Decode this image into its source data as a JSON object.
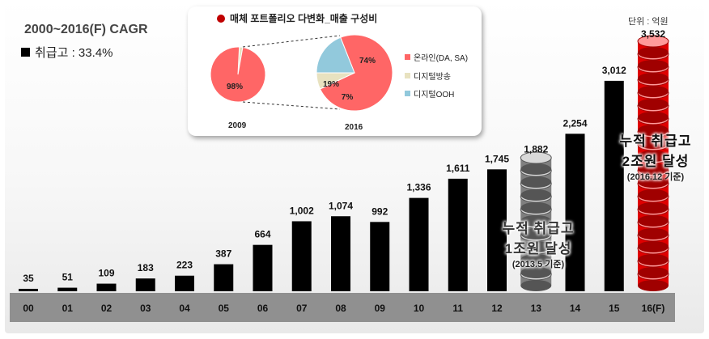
{
  "header": {
    "cagr_title": "2000~2016(F) CAGR",
    "legend_label": "취급고 : 33.4%",
    "unit": "단위 : 억원"
  },
  "inset": {
    "title": "매체 포트폴리오 다변화_매출 구성비",
    "pies": [
      {
        "year": "2009",
        "slices": [
          {
            "name": "온라인(DA, SA)",
            "value": 98,
            "label": "98%"
          },
          {
            "name": "디지털방송",
            "value": 2,
            "label": ""
          }
        ]
      },
      {
        "year": "2016",
        "slices": [
          {
            "name": "온라인(DA, SA)",
            "value": 74,
            "label": "74%"
          },
          {
            "name": "디지털방송",
            "value": 7,
            "label": "7%"
          },
          {
            "name": "디지털OOH",
            "value": 19,
            "label": "19%"
          }
        ]
      }
    ],
    "legend": [
      {
        "label": "온라인(DA, SA)",
        "color": "#ff6666"
      },
      {
        "label": "디지털방송",
        "color": "#e8e2c0"
      },
      {
        "label": "디지털OOH",
        "color": "#92c9dc"
      }
    ]
  },
  "callouts": {
    "first": {
      "line1": "누적 취급고",
      "line2": "1조원 달성",
      "line3": "(2013.5 기준)"
    },
    "second": {
      "line1": "누적 취급고",
      "line2": "2조원 달성",
      "line3": "(2016.12 기준)"
    }
  },
  "colors": {
    "bar": "#000000",
    "forecast": "#e00000",
    "axis_band": "#909090"
  },
  "chart_data": {
    "type": "bar",
    "categories": [
      "00",
      "01",
      "02",
      "03",
      "04",
      "05",
      "06",
      "07",
      "08",
      "09",
      "10",
      "11",
      "12",
      "13",
      "14",
      "15",
      "16(F)"
    ],
    "values": [
      35,
      51,
      109,
      183,
      223,
      387,
      664,
      1002,
      1074,
      992,
      1336,
      1611,
      1745,
      1882,
      2254,
      3012,
      3532
    ],
    "value_labels": [
      "35",
      "51",
      "109",
      "183",
      "223",
      "387",
      "664",
      "1,002",
      "1,074",
      "992",
      "1,336",
      "1,611",
      "1,745",
      "1,882",
      "2,254",
      "3,012",
      "3,532"
    ],
    "styles": [
      "bar",
      "bar",
      "bar",
      "bar",
      "bar",
      "bar",
      "bar",
      "bar",
      "bar",
      "bar",
      "bar",
      "bar",
      "bar",
      "coin-stack-gray",
      "bar",
      "bar",
      "coin-stack-red"
    ],
    "title": "2000~2016(F) CAGR",
    "ylabel": "",
    "ylim": [
      0,
      3532
    ],
    "grid": false,
    "legend": "top-left"
  }
}
